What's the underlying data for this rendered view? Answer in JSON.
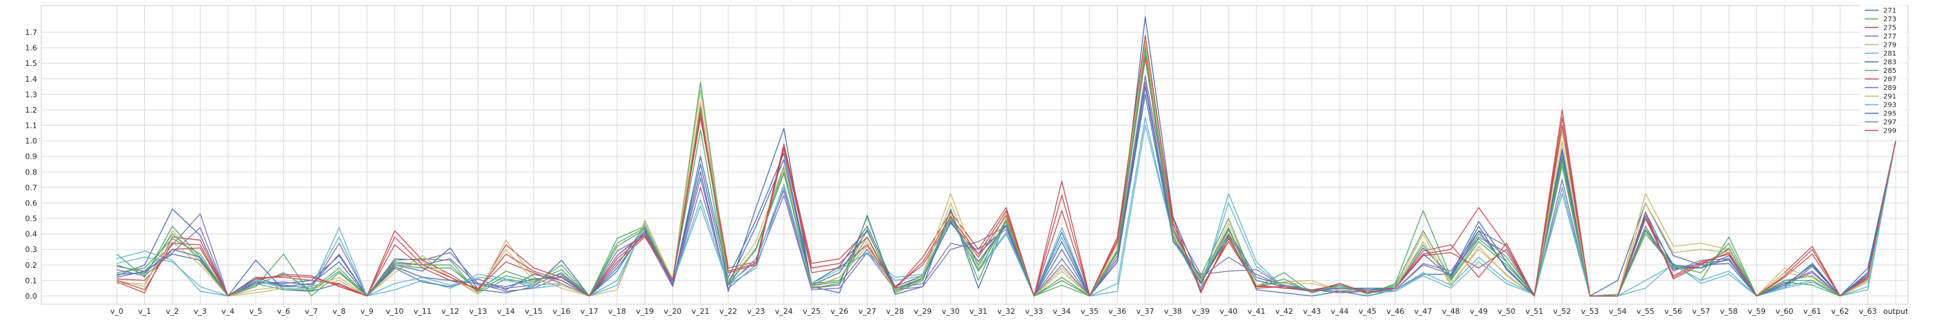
{
  "chart_data": {
    "type": "line",
    "title": "",
    "xlabel": "",
    "ylabel": "",
    "grid": true,
    "legend_placement": "top-right",
    "ylim": [
      -0.1,
      1.85
    ],
    "y_ticks": [
      "0.0",
      "0.1",
      "0.2",
      "0.3",
      "0.4",
      "0.5",
      "0.6",
      "0.7",
      "0.8",
      "0.9",
      "1.0",
      "1.1",
      "1.2",
      "1.3",
      "1.4",
      "1.5",
      "1.6",
      "1.7"
    ],
    "categories": [
      "v_0",
      "v_1",
      "v_2",
      "v_3",
      "v_4",
      "v_5",
      "v_6",
      "v_7",
      "v_8",
      "v_9",
      "v_10",
      "v_11",
      "v_12",
      "v_13",
      "v_14",
      "v_15",
      "v_16",
      "v_17",
      "v_18",
      "v_19",
      "v_20",
      "v_21",
      "v_22",
      "v_23",
      "v_24",
      "v_25",
      "v_26",
      "v_27",
      "v_28",
      "v_29",
      "v_30",
      "v_31",
      "v_32",
      "v_33",
      "v_34",
      "v_35",
      "v_36",
      "v_37",
      "v_38",
      "v_39",
      "v_40",
      "v_41",
      "v_42",
      "v_43",
      "v_44",
      "v_45",
      "v_46",
      "v_47",
      "v_48",
      "v_49",
      "v_50",
      "v_51",
      "v_52",
      "v_53",
      "v_54",
      "v_55",
      "v_56",
      "v_57",
      "v_58",
      "v_59",
      "v_60",
      "v_61",
      "v_62",
      "v_63",
      "output"
    ],
    "series": [
      {
        "name": "271",
        "color": "#4c72b0",
        "values": [
          0.13,
          0.2,
          0.56,
          0.39,
          0,
          0.23,
          0.04,
          0.03,
          0.08,
          0,
          0.2,
          0.16,
          0.31,
          0.04,
          0.02,
          0.06,
          0.23,
          0,
          0.2,
          0.45,
          0.08,
          0.8,
          0.03,
          0.57,
          1.08,
          0.06,
          0.02,
          0.52,
          0.01,
          0.06,
          0.56,
          0.05,
          0.49,
          0,
          0.3,
          0,
          0.24,
          1.8,
          0.51,
          0.09,
          0.43,
          0.04,
          0.02,
          0,
          0.03,
          0,
          0.04,
          0.14,
          0.14,
          0.48,
          0.22,
          0,
          0.95,
          0,
          0.1,
          0.6,
          0.26,
          0.2,
          0.21,
          0,
          0.05,
          0.19,
          0,
          0.18,
          1.0
        ]
      },
      {
        "name": "273",
        "color": "#55a868",
        "values": [
          0.27,
          0.12,
          0.45,
          0.25,
          0,
          0.06,
          0.27,
          0,
          0.15,
          0,
          0.23,
          0.24,
          0.23,
          0.02,
          0.11,
          0.08,
          0.2,
          0,
          0.37,
          0.45,
          0.1,
          1.38,
          0.1,
          0.3,
          0.83,
          0.05,
          0.07,
          0.51,
          0.02,
          0.1,
          0.55,
          0.1,
          0.5,
          0,
          0.07,
          0,
          0.3,
          1.55,
          0.35,
          0.13,
          0.5,
          0.06,
          0.15,
          0.02,
          0.08,
          0.01,
          0.08,
          0.55,
          0.12,
          0.4,
          0.25,
          0.01,
          0.9,
          0,
          0.01,
          0.43,
          0.2,
          0.1,
          0.38,
          0,
          0.09,
          0.07,
          0,
          0.12,
          1.0
        ]
      },
      {
        "name": "275",
        "color": "#c44e52",
        "values": [
          0.09,
          0.02,
          0.38,
          0.36,
          0,
          0.1,
          0.14,
          0.13,
          0.06,
          0,
          0.42,
          0.23,
          0.14,
          0.03,
          0.33,
          0.18,
          0.12,
          0,
          0.26,
          0.4,
          0.11,
          1.22,
          0.18,
          0.22,
          0.98,
          0.21,
          0.24,
          0.42,
          0.05,
          0.25,
          0.54,
          0.3,
          0.57,
          0,
          0.74,
          0,
          0.38,
          1.63,
          0.5,
          0.02,
          0.39,
          0.05,
          0.06,
          0.03,
          0.08,
          0.02,
          0.05,
          0.29,
          0.33,
          0.12,
          0.34,
          0,
          1.2,
          0,
          0,
          0.54,
          0.11,
          0.2,
          0.3,
          0,
          0.15,
          0.32,
          0,
          0.13,
          1.0
        ]
      },
      {
        "name": "277",
        "color": "#8172b2",
        "values": [
          0.19,
          0.16,
          0.33,
          0.53,
          0,
          0.09,
          0.07,
          0.05,
          0.34,
          0,
          0.24,
          0.23,
          0.28,
          0.08,
          0.03,
          0.05,
          0.13,
          0,
          0.29,
          0.39,
          0.06,
          0.76,
          0.05,
          0.2,
          0.65,
          0.04,
          0.05,
          0.28,
          0.04,
          0.06,
          0.3,
          0.35,
          0.45,
          0,
          0.2,
          0,
          0.26,
          1.42,
          0.46,
          0.14,
          0.16,
          0.17,
          0.06,
          0.04,
          0.02,
          0.03,
          0.04,
          0.21,
          0.16,
          0.42,
          0.32,
          0,
          0.7,
          0,
          0,
          0.45,
          0.16,
          0.23,
          0.24,
          0,
          0.08,
          0.15,
          0,
          0.11,
          1.0
        ]
      },
      {
        "name": "279",
        "color": "#ccb974",
        "values": [
          0.1,
          0.06,
          0.42,
          0.22,
          0,
          0.02,
          0.05,
          0.05,
          0.1,
          0,
          0.15,
          0.26,
          0.12,
          0.01,
          0.36,
          0.12,
          0.05,
          0,
          0.04,
          0.49,
          0.1,
          1.33,
          0.1,
          0.35,
          0.84,
          0.05,
          0.12,
          0.35,
          0.03,
          0.14,
          0.66,
          0.18,
          0.54,
          0,
          0.18,
          0,
          0.33,
          1.64,
          0.43,
          0.1,
          0.47,
          0.07,
          0.09,
          0.1,
          0.03,
          0.05,
          0.05,
          0.4,
          0.06,
          0.32,
          0.13,
          0,
          1.07,
          0,
          0,
          0.66,
          0.32,
          0.34,
          0.3,
          0,
          0.18,
          0.12,
          0,
          0.09,
          1.0
        ]
      },
      {
        "name": "281",
        "color": "#64b5cd",
        "values": [
          0.24,
          0.29,
          0.23,
          0.03,
          0,
          0.1,
          0.05,
          0.05,
          0.44,
          0,
          0.04,
          0.1,
          0.05,
          0.14,
          0.11,
          0.05,
          0.07,
          0,
          0.07,
          0.47,
          0.09,
          0.58,
          0.07,
          0.18,
          0.7,
          0.08,
          0.19,
          0.27,
          0.12,
          0.14,
          0.51,
          0.16,
          0.4,
          0,
          0.44,
          0,
          0.03,
          1.1,
          0.39,
          0.04,
          0.66,
          0.22,
          0.05,
          0.03,
          0.07,
          0.02,
          0.03,
          0.13,
          0.05,
          0.22,
          0.08,
          0.01,
          0.66,
          0,
          0,
          0.05,
          0.21,
          0.08,
          0.14,
          0,
          0.05,
          0.09,
          0,
          0.04,
          1.0
        ]
      },
      {
        "name": "283",
        "color": "#4c72b0",
        "values": [
          0.12,
          0.16,
          0.27,
          0.23,
          0,
          0.09,
          0.08,
          0.1,
          0.26,
          0,
          0.18,
          0.09,
          0.06,
          0.11,
          0.04,
          0.14,
          0.1,
          0,
          0.16,
          0.44,
          0.07,
          0.9,
          0.12,
          0.49,
          0.92,
          0.08,
          0.19,
          0.45,
          0.06,
          0.13,
          0.47,
          0.27,
          0.45,
          0,
          0.41,
          0,
          0.22,
          1.3,
          0.36,
          0.08,
          0.42,
          0.12,
          0.07,
          0.04,
          0.05,
          0.05,
          0.05,
          0.31,
          0.13,
          0.45,
          0.17,
          0,
          0.93,
          0,
          0,
          0.54,
          0.18,
          0.18,
          0.26,
          0,
          0.06,
          0.21,
          0,
          0.15,
          1.0
        ]
      },
      {
        "name": "285",
        "color": "#55a868",
        "values": [
          0.15,
          0.18,
          0.37,
          0.27,
          0,
          0.08,
          0.04,
          0.04,
          0.18,
          0,
          0.2,
          0.18,
          0.18,
          0.04,
          0.16,
          0.1,
          0.14,
          0,
          0.32,
          0.43,
          0.1,
          1.07,
          0.07,
          0.31,
          0.79,
          0.08,
          0.1,
          0.38,
          0.03,
          0.12,
          0.5,
          0.2,
          0.48,
          0,
          0.12,
          0,
          0.28,
          1.53,
          0.42,
          0.09,
          0.38,
          0.06,
          0.09,
          0.03,
          0.06,
          0.02,
          0.06,
          0.33,
          0.1,
          0.35,
          0.2,
          0.01,
          0.84,
          0,
          0,
          0.4,
          0.19,
          0.18,
          0.31,
          0,
          0.1,
          0.13,
          0,
          0.12,
          1.0
        ]
      },
      {
        "name": "287",
        "color": "#c44e52",
        "values": [
          0.11,
          0.1,
          0.3,
          0.31,
          0,
          0.12,
          0.12,
          0.1,
          0.08,
          0,
          0.33,
          0.18,
          0.1,
          0.05,
          0.22,
          0.15,
          0.08,
          0,
          0.22,
          0.38,
          0.1,
          1.15,
          0.15,
          0.2,
          0.95,
          0.15,
          0.18,
          0.33,
          0.06,
          0.2,
          0.49,
          0.25,
          0.52,
          0,
          0.55,
          0,
          0.35,
          1.55,
          0.44,
          0.05,
          0.35,
          0.07,
          0.05,
          0.04,
          0.07,
          0.03,
          0.05,
          0.26,
          0.28,
          0.18,
          0.3,
          0,
          1.1,
          0,
          0,
          0.5,
          0.13,
          0.22,
          0.27,
          0,
          0.12,
          0.27,
          0,
          0.12,
          1.0
        ]
      },
      {
        "name": "289",
        "color": "#8172b2",
        "values": [
          0.17,
          0.13,
          0.28,
          0.44,
          0,
          0.08,
          0.09,
          0.07,
          0.27,
          0,
          0.21,
          0.2,
          0.24,
          0.07,
          0.05,
          0.07,
          0.15,
          0,
          0.26,
          0.41,
          0.07,
          0.7,
          0.07,
          0.24,
          0.68,
          0.05,
          0.08,
          0.3,
          0.05,
          0.08,
          0.34,
          0.3,
          0.43,
          0,
          0.24,
          0,
          0.24,
          1.38,
          0.4,
          0.12,
          0.25,
          0.14,
          0.06,
          0.04,
          0.03,
          0.03,
          0.04,
          0.2,
          0.14,
          0.38,
          0.28,
          0,
          0.75,
          0,
          0,
          0.42,
          0.17,
          0.21,
          0.23,
          0,
          0.08,
          0.16,
          0,
          0.11,
          1.0
        ]
      },
      {
        "name": "291",
        "color": "#ccb974",
        "values": [
          0.08,
          0.08,
          0.35,
          0.2,
          0,
          0.04,
          0.06,
          0.06,
          0.12,
          0,
          0.17,
          0.22,
          0.12,
          0.02,
          0.3,
          0.1,
          0.07,
          0,
          0.1,
          0.46,
          0.1,
          1.25,
          0.1,
          0.3,
          0.8,
          0.06,
          0.12,
          0.32,
          0.04,
          0.13,
          0.6,
          0.16,
          0.5,
          0,
          0.16,
          0,
          0.3,
          1.58,
          0.4,
          0.1,
          0.42,
          0.07,
          0.08,
          0.08,
          0.04,
          0.04,
          0.05,
          0.35,
          0.08,
          0.3,
          0.14,
          0,
          1.0,
          0,
          0,
          0.6,
          0.28,
          0.3,
          0.28,
          0,
          0.15,
          0.12,
          0,
          0.1,
          1.0
        ]
      },
      {
        "name": "293",
        "color": "#64b5cd",
        "values": [
          0.21,
          0.25,
          0.22,
          0.06,
          0,
          0.1,
          0.06,
          0.06,
          0.38,
          0,
          0.08,
          0.12,
          0.07,
          0.12,
          0.1,
          0.07,
          0.08,
          0,
          0.1,
          0.45,
          0.09,
          0.62,
          0.08,
          0.22,
          0.72,
          0.08,
          0.17,
          0.28,
          0.1,
          0.13,
          0.5,
          0.17,
          0.41,
          0,
          0.38,
          0,
          0.08,
          1.15,
          0.38,
          0.05,
          0.6,
          0.19,
          0.06,
          0.03,
          0.06,
          0.02,
          0.04,
          0.15,
          0.07,
          0.25,
          0.1,
          0.01,
          0.7,
          0,
          0,
          0.1,
          0.2,
          0.1,
          0.16,
          0,
          0.06,
          0.1,
          0,
          0.06,
          1.0
        ]
      },
      {
        "name": "295",
        "color": "#4c72b0",
        "values": [
          0.14,
          0.15,
          0.3,
          0.25,
          0,
          0.12,
          0.06,
          0.08,
          0.22,
          0,
          0.19,
          0.12,
          0.1,
          0.08,
          0.06,
          0.11,
          0.12,
          0,
          0.18,
          0.42,
          0.08,
          0.85,
          0.08,
          0.45,
          0.88,
          0.07,
          0.15,
          0.42,
          0.05,
          0.11,
          0.48,
          0.22,
          0.46,
          0,
          0.35,
          0,
          0.22,
          1.35,
          0.38,
          0.08,
          0.4,
          0.1,
          0.06,
          0.03,
          0.05,
          0.04,
          0.05,
          0.27,
          0.12,
          0.42,
          0.18,
          0,
          0.88,
          0,
          0,
          0.5,
          0.2,
          0.18,
          0.24,
          0,
          0.07,
          0.2,
          0,
          0.14,
          1.0
        ]
      },
      {
        "name": "297",
        "color": "#55a868",
        "values": [
          0.2,
          0.14,
          0.4,
          0.24,
          0,
          0.07,
          0.15,
          0.03,
          0.16,
          0,
          0.22,
          0.2,
          0.2,
          0.03,
          0.13,
          0.09,
          0.17,
          0,
          0.34,
          0.44,
          0.1,
          1.2,
          0.08,
          0.3,
          0.8,
          0.07,
          0.09,
          0.43,
          0.03,
          0.11,
          0.52,
          0.16,
          0.49,
          0,
          0.1,
          0,
          0.29,
          1.6,
          0.38,
          0.11,
          0.44,
          0.06,
          0.11,
          0.02,
          0.07,
          0.02,
          0.07,
          0.42,
          0.11,
          0.37,
          0.22,
          0.01,
          0.87,
          0,
          0,
          0.42,
          0.19,
          0.15,
          0.34,
          0,
          0.1,
          0.1,
          0,
          0.12,
          1.0
        ]
      },
      {
        "name": "299",
        "color": "#c44e52",
        "values": [
          0.1,
          0.04,
          0.34,
          0.33,
          0,
          0.11,
          0.13,
          0.12,
          0.07,
          0,
          0.38,
          0.2,
          0.12,
          0.04,
          0.27,
          0.16,
          0.1,
          0,
          0.24,
          0.39,
          0.1,
          1.18,
          0.16,
          0.21,
          0.96,
          0.18,
          0.21,
          0.38,
          0.05,
          0.22,
          0.51,
          0.27,
          0.55,
          0,
          0.65,
          0,
          0.36,
          1.68,
          0.47,
          0.03,
          0.37,
          0.06,
          0.06,
          0.03,
          0.08,
          0.02,
          0.05,
          0.27,
          0.3,
          0.57,
          0.32,
          0,
          1.15,
          0,
          0,
          0.52,
          0.12,
          0.21,
          0.28,
          0,
          0.13,
          0.3,
          0,
          0.12,
          1.0
        ]
      }
    ]
  }
}
